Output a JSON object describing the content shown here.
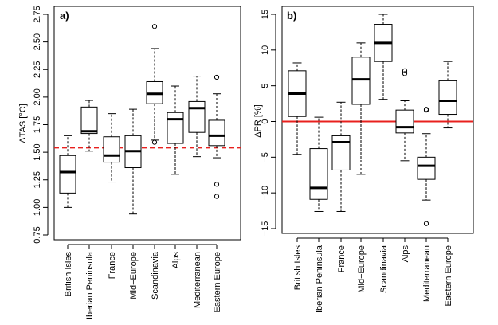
{
  "chart_data": [
    {
      "type": "boxplot",
      "panel_label": "a)",
      "ylabel": "ΔTAS [°C]",
      "ylim": [
        0.75,
        2.75
      ],
      "yticks": [
        "0.75",
        "1.00",
        "1.25",
        "1.50",
        "1.75",
        "2.00",
        "2.25",
        "2.50",
        "2.75"
      ],
      "categories": [
        "British Isles",
        "Iberian Peninsula",
        "France",
        "Mid−Europe",
        "Scandinavia",
        "Alps",
        "Mediterranean",
        "Eastern Europe"
      ],
      "reference_line": {
        "y": 1.54,
        "style": "dashed",
        "color": "#e8201e"
      },
      "boxes": [
        {
          "min": 1.0,
          "q1": 1.13,
          "median": 1.32,
          "q3": 1.47,
          "max": 1.65,
          "outliers": []
        },
        {
          "min": 1.51,
          "q1": 1.67,
          "median": 1.69,
          "q3": 1.91,
          "max": 1.97,
          "outliers": []
        },
        {
          "min": 1.23,
          "q1": 1.41,
          "median": 1.47,
          "q3": 1.64,
          "max": 1.85,
          "outliers": []
        },
        {
          "min": 0.94,
          "q1": 1.36,
          "median": 1.51,
          "q3": 1.65,
          "max": 1.89,
          "outliers": []
        },
        {
          "min": 1.61,
          "q1": 1.94,
          "median": 2.03,
          "q3": 2.14,
          "max": 2.44,
          "outliers": [
            2.64,
            1.59
          ]
        },
        {
          "min": 1.3,
          "q1": 1.58,
          "median": 1.8,
          "q3": 1.86,
          "max": 2.1,
          "outliers": []
        },
        {
          "min": 1.46,
          "q1": 1.68,
          "median": 1.9,
          "q3": 1.96,
          "max": 2.19,
          "outliers": []
        },
        {
          "min": 1.45,
          "q1": 1.56,
          "median": 1.65,
          "q3": 1.79,
          "max": 2.03,
          "outliers": [
            2.18,
            1.21,
            1.1
          ]
        }
      ]
    },
    {
      "type": "boxplot",
      "panel_label": "b)",
      "ylabel": "ΔPR [%]",
      "ylim": [
        -15,
        15
      ],
      "yticks": [
        "−15",
        "−10",
        "−5",
        "0",
        "5",
        "10",
        "15"
      ],
      "categories": [
        "British Isles",
        "Iberian Peninsula",
        "France",
        "Mid−Europe",
        "Scandinavia",
        "Alps",
        "Mediterranean",
        "Eastern Europe"
      ],
      "reference_line": {
        "y": 0,
        "style": "solid",
        "color": "#e8201e"
      },
      "boxes": [
        {
          "min": -4.6,
          "q1": 0.7,
          "median": 3.9,
          "q3": 7.1,
          "max": 8.2,
          "outliers": []
        },
        {
          "min": -12.6,
          "q1": -10.9,
          "median": -9.3,
          "q3": -3.8,
          "max": 0.6,
          "outliers": []
        },
        {
          "min": -12.6,
          "q1": -6.8,
          "median": -2.9,
          "q3": -2.0,
          "max": 2.7,
          "outliers": []
        },
        {
          "min": -7.4,
          "q1": 2.4,
          "median": 5.9,
          "q3": 9.0,
          "max": 11.0,
          "outliers": []
        },
        {
          "min": 3.1,
          "q1": 8.4,
          "median": 11.0,
          "q3": 13.6,
          "max": 15.0,
          "outliers": []
        },
        {
          "min": -5.5,
          "q1": -1.6,
          "median": -0.8,
          "q3": 1.6,
          "max": 2.9,
          "outliers": [
            7.1,
            6.7
          ]
        },
        {
          "min": -11.0,
          "q1": -8.1,
          "median": -6.2,
          "q3": -5.0,
          "max": -1.7,
          "outliers": [
            1.7,
            1.6,
            -14.3
          ]
        },
        {
          "min": -0.9,
          "q1": 1.0,
          "median": 2.9,
          "q3": 5.7,
          "max": 8.4,
          "outliers": []
        }
      ]
    }
  ]
}
